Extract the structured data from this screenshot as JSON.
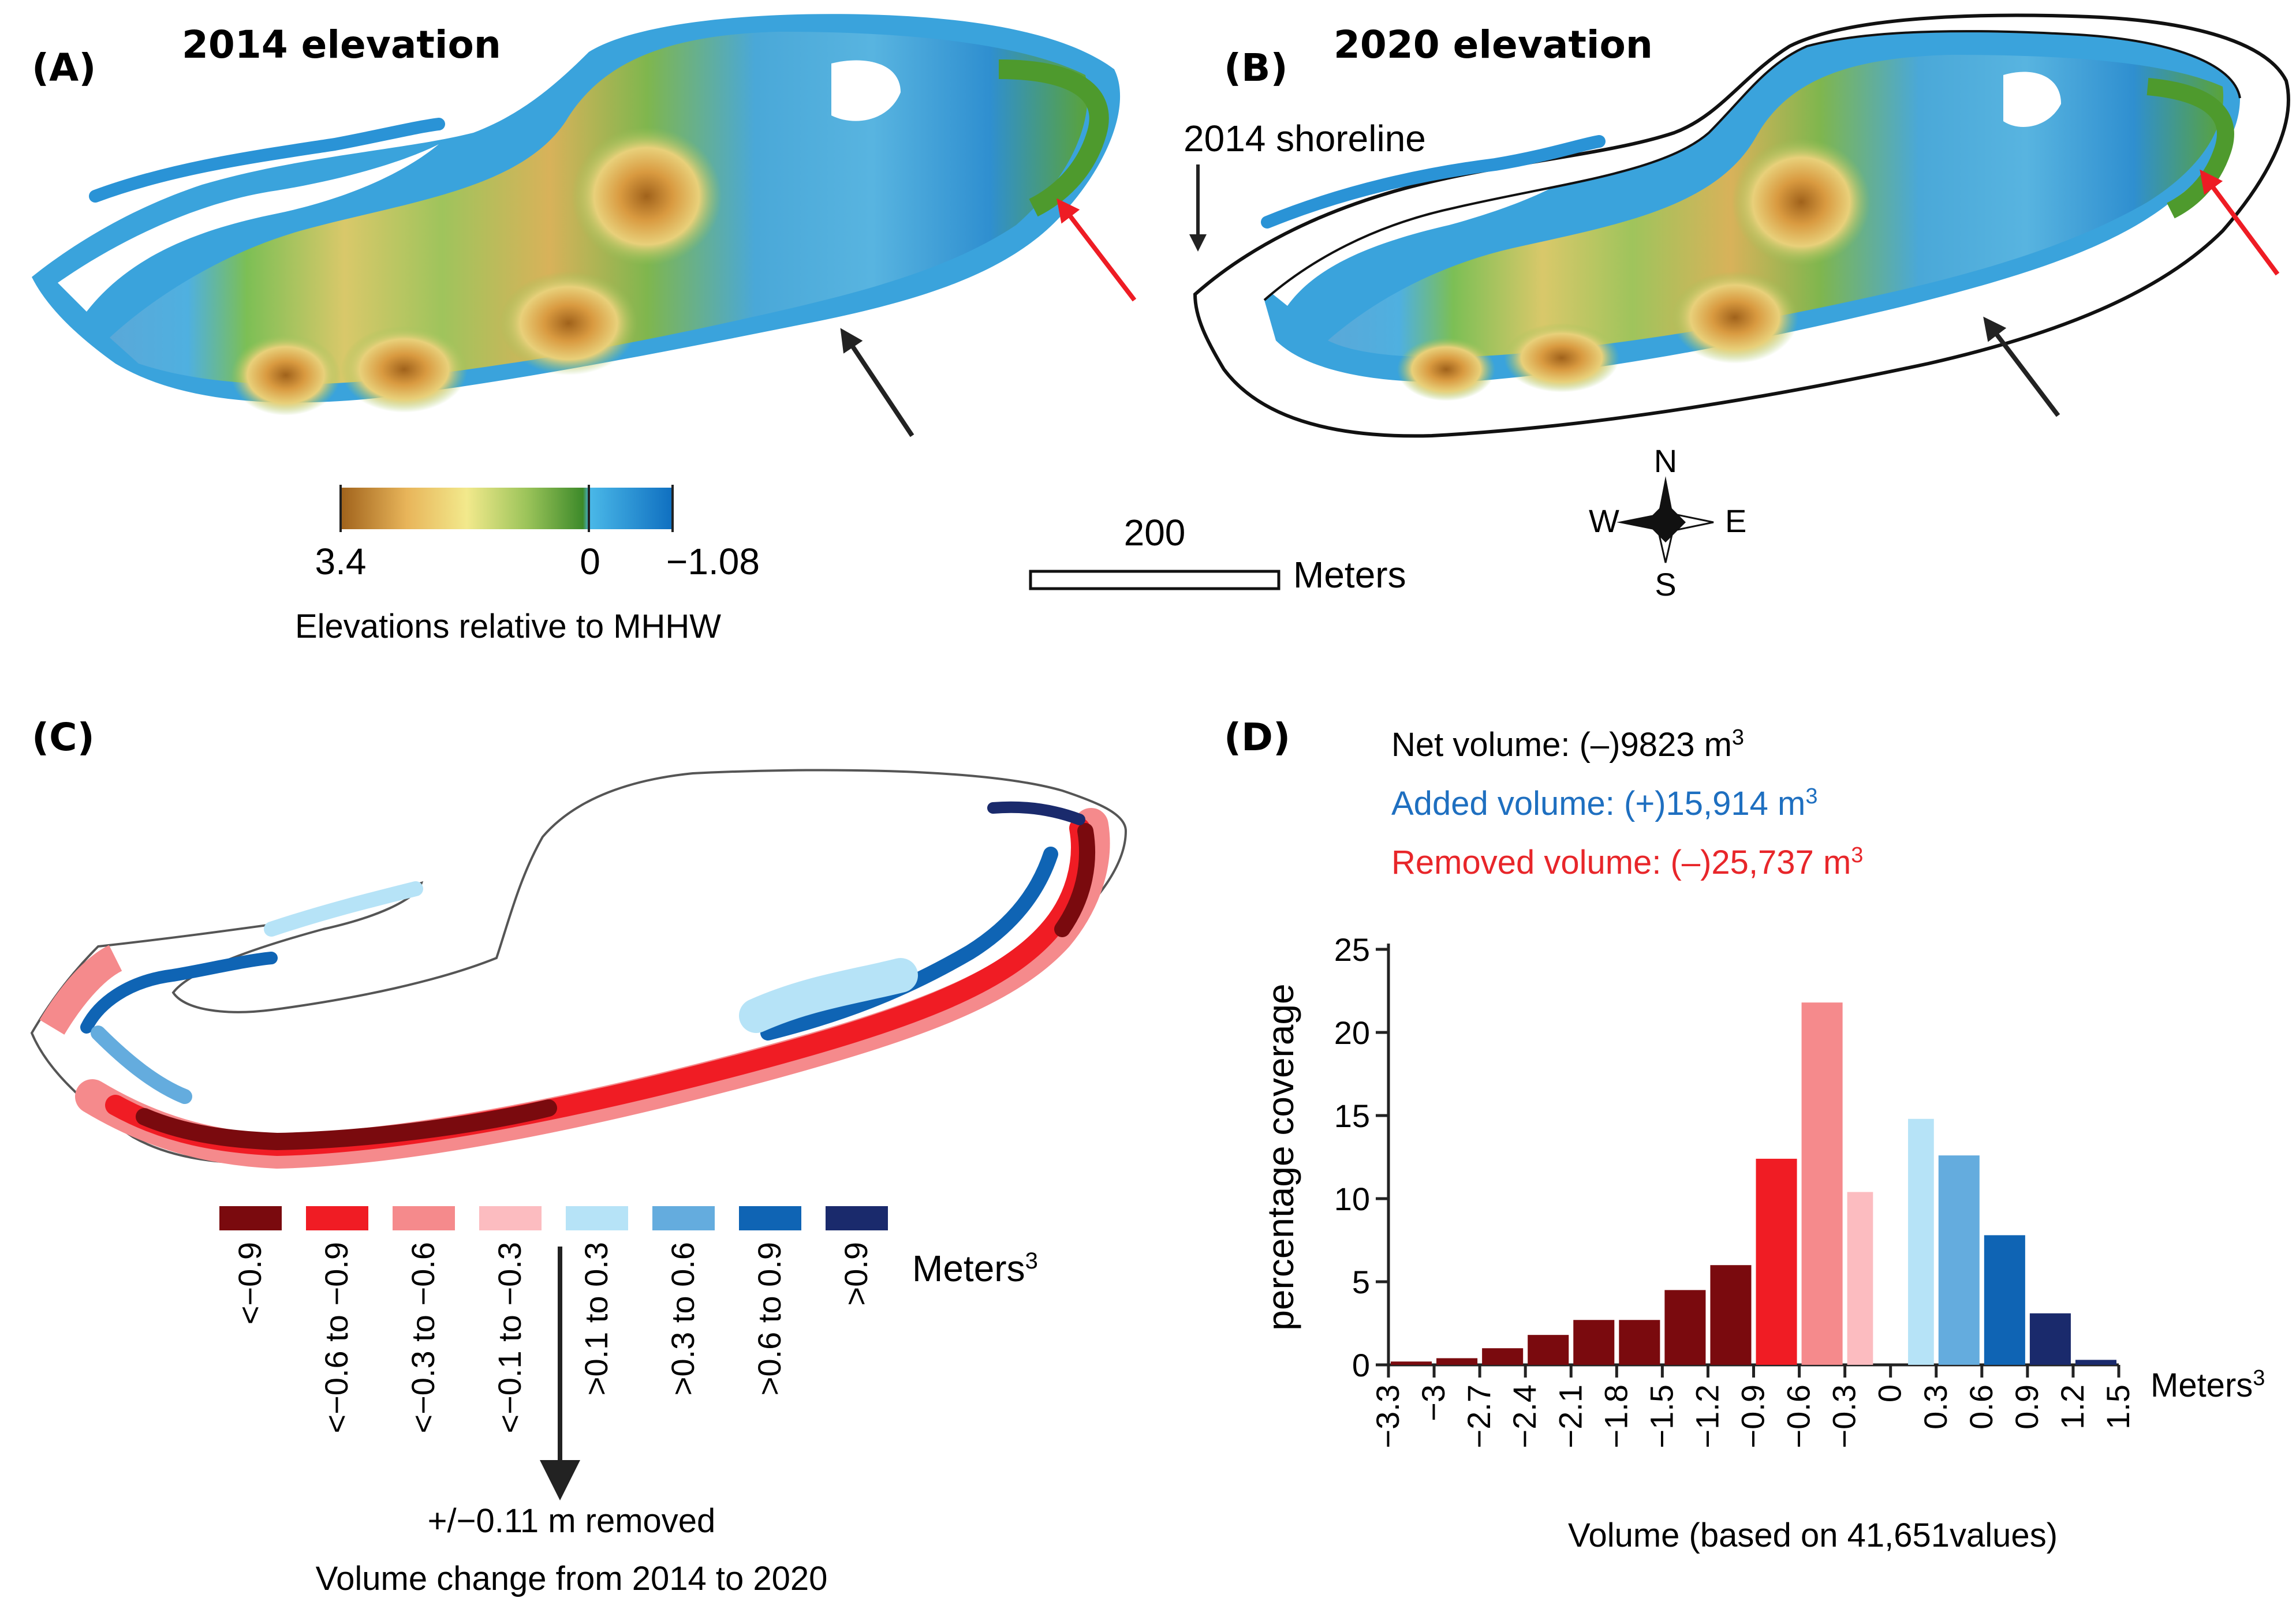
{
  "panels": {
    "a": {
      "label": "(A)",
      "title": "2014 elevation"
    },
    "b": {
      "label": "(B)",
      "title": "2020 elevation",
      "shoreline_label": "2014 shoreline"
    },
    "c": {
      "label": "(C)"
    },
    "d": {
      "label": "(D)"
    }
  },
  "elevation_legend": {
    "max_label": "3.4",
    "zero_label": "0",
    "min_label": "−1.08",
    "caption": "Elevations relative to MHHW",
    "gradient_colors": [
      "#a0621b",
      "#e8b55a",
      "#f2e98c",
      "#9cc45a",
      "#3d8a2a",
      "#4ab8e8",
      "#0f6fc0"
    ]
  },
  "scale_bar": {
    "distance": "200",
    "units": "Meters"
  },
  "compass": {
    "n": "N",
    "s": "S",
    "e": "E",
    "w": "W"
  },
  "volume_legend": {
    "classes": [
      {
        "label": "<−0.9",
        "color": "#7a0a0e"
      },
      {
        "label": "<−0.6 to −0.9",
        "color": "#f01c24"
      },
      {
        "label": "<−0.3 to −0.6",
        "color": "#f58a8c"
      },
      {
        "label": "<−0.1 to −0.3",
        "color": "#fcbcc0"
      },
      {
        "label": ">0.1 to 0.3",
        "color": "#b6e3f7"
      },
      {
        "label": ">0.3 to 0.6",
        "color": "#64acde"
      },
      {
        "label": ">0.6 to 0.9",
        "color": "#0f64b4"
      },
      {
        "label": ">0.9",
        "color": "#1a2a6c"
      }
    ],
    "units_base": "Meters",
    "units_exp": "3",
    "arrow_note": "+/−0.11 m removed",
    "caption": "Volume change from 2014 to 2020"
  },
  "volumes": {
    "net": {
      "label": "Net volume: (–)9823 m",
      "exp": "3",
      "color": "#222222"
    },
    "added": {
      "label": "Added volume: (+)15,914 m",
      "exp": "3",
      "color": "#1e6fc0"
    },
    "removed": {
      "label": "Removed volume: (–)25,737 m",
      "exp": "3",
      "color": "#e8262a"
    }
  },
  "chart_data": {
    "type": "bar",
    "ylabel": "percentage coverage",
    "xlabel": "Volume (based on 41,651values)",
    "x_units_base": "Meters",
    "x_units_exp": "3",
    "ylim": [
      0,
      25
    ],
    "yticks": [
      0,
      5,
      10,
      15,
      20,
      25
    ],
    "xlim": [
      -3.3,
      1.5
    ],
    "xticks": [
      "−3.3",
      "−3",
      "−2.7",
      "−2.4",
      "−2.1",
      "−1.8",
      "−1.5",
      "−1.2",
      "−0.9",
      "−0.6",
      "−0.3",
      "0",
      "0.3",
      "0.6",
      "0.9",
      "1.2",
      "1.5"
    ],
    "bars": [
      {
        "from": -3.3,
        "to": -3.0,
        "value": 0.2,
        "color": "#7a0a0e"
      },
      {
        "from": -3.0,
        "to": -2.7,
        "value": 0.4,
        "color": "#7a0a0e"
      },
      {
        "from": -2.7,
        "to": -2.4,
        "value": 1.0,
        "color": "#7a0a0e"
      },
      {
        "from": -2.4,
        "to": -2.1,
        "value": 1.8,
        "color": "#7a0a0e"
      },
      {
        "from": -2.1,
        "to": -1.8,
        "value": 2.7,
        "color": "#7a0a0e"
      },
      {
        "from": -1.8,
        "to": -1.5,
        "value": 2.7,
        "color": "#7a0a0e"
      },
      {
        "from": -1.5,
        "to": -1.2,
        "value": 4.5,
        "color": "#7a0a0e"
      },
      {
        "from": -1.2,
        "to": -0.9,
        "value": 6.0,
        "color": "#7a0a0e"
      },
      {
        "from": -0.9,
        "to": -0.6,
        "value": 12.4,
        "color": "#f01c24"
      },
      {
        "from": -0.6,
        "to": -0.3,
        "value": 21.8,
        "color": "#f58a8c"
      },
      {
        "from": -0.3,
        "to": -0.1,
        "value": 10.4,
        "color": "#fcbcc0"
      },
      {
        "from": 0.1,
        "to": 0.3,
        "value": 14.8,
        "color": "#b6e3f7"
      },
      {
        "from": 0.3,
        "to": 0.6,
        "value": 12.6,
        "color": "#64acde"
      },
      {
        "from": 0.6,
        "to": 0.9,
        "value": 7.8,
        "color": "#0f64b4"
      },
      {
        "from": 0.9,
        "to": 1.2,
        "value": 3.1,
        "color": "#1a2a6c"
      },
      {
        "from": 1.2,
        "to": 1.5,
        "value": 0.3,
        "color": "#1a2a6c"
      }
    ]
  }
}
